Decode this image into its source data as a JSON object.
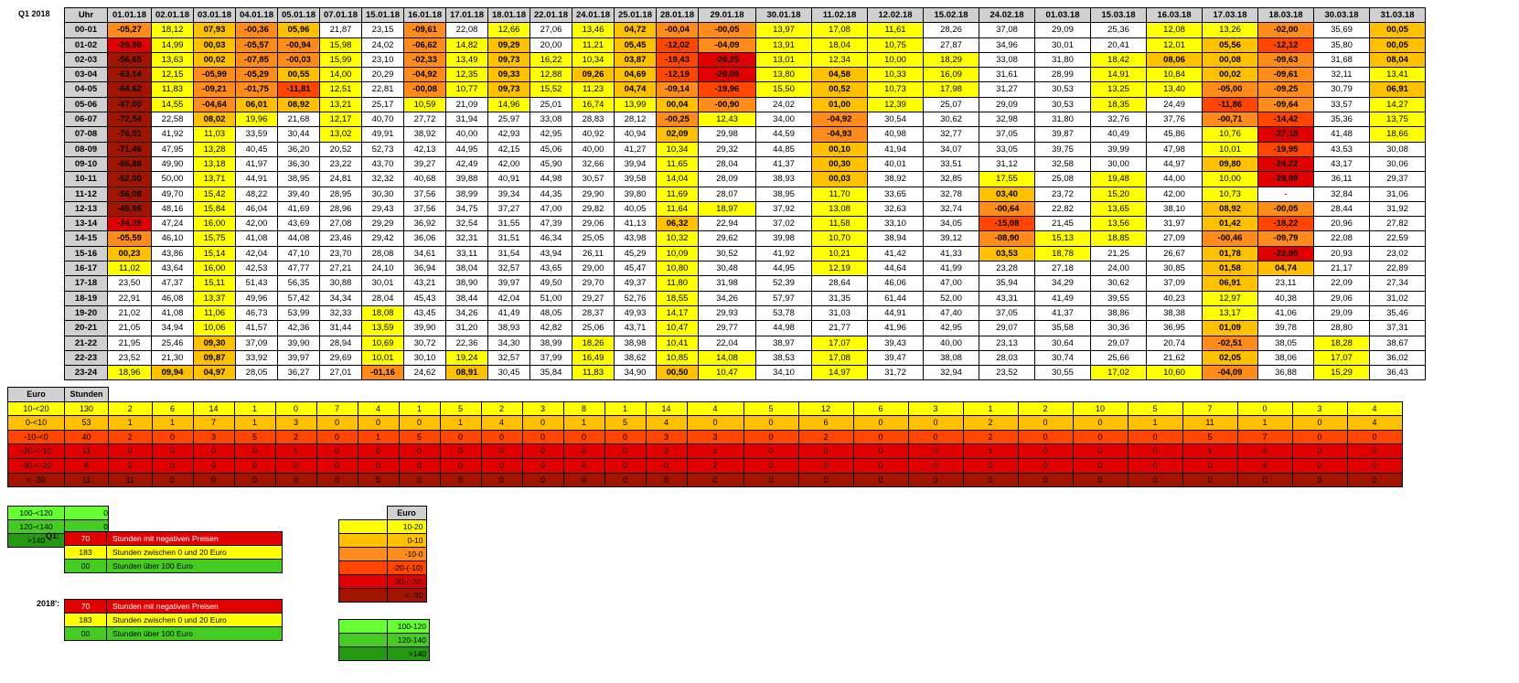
{
  "title": "Q1 2018",
  "main": {
    "hour_header": "Uhr",
    "dates": [
      "01.01.18",
      "02.01.18",
      "03.01.18",
      "04.01.18",
      "05.01.18",
      "07.01.18",
      "15.01.18",
      "16.01.18",
      "17.01.18",
      "18.01.18",
      "22.01.18",
      "24.01.18",
      "25.01.18",
      "28.01.18",
      "29.01.18",
      "30.01.18",
      "11.02.18",
      "12.02.18",
      "15.02.18",
      "24.02.18",
      "01.03.18",
      "15.03.18",
      "16.03.18",
      "17.03.18",
      "18.03.18",
      "30.03.18",
      "31.03.18"
    ],
    "rows": [
      {
        "hour": "00-01",
        "values": [
          "-05,27",
          "18,12",
          "07,93",
          "-00,36",
          "05,96",
          "21,87",
          "23,15",
          "-09,61",
          "22,08",
          "12,66",
          "27,06",
          "13,46",
          "04,72",
          "-00,04",
          "-00,05",
          "13,97",
          "17,08",
          "11,61",
          "28,26",
          "37,08",
          "29,09",
          "25,36",
          "12,08",
          "13,26",
          "-02,00",
          "35,69",
          "00,05"
        ]
      },
      {
        "hour": "01-02",
        "values": [
          "-29,99",
          "14,99",
          "00,03",
          "-05,57",
          "-00,94",
          "15,98",
          "24,02",
          "-06,62",
          "14,82",
          "09,29",
          "20,00",
          "11,21",
          "05,45",
          "-12,02",
          "-04,09",
          "13,91",
          "18,04",
          "10,75",
          "27,87",
          "34,96",
          "30,01",
          "20,41",
          "12,01",
          "05,56",
          "-12,12",
          "35,80",
          "00,05"
        ]
      },
      {
        "hour": "02-03",
        "values": [
          "-56,65",
          "13,63",
          "00,02",
          "-07,85",
          "-00,03",
          "15,99",
          "23,10",
          "-02,33",
          "13,49",
          "09,73",
          "16,22",
          "10,34",
          "03,87",
          "-19,43",
          "-20,25",
          "13,01",
          "12,34",
          "10,00",
          "18,29",
          "33,08",
          "31,80",
          "18,42",
          "08,06",
          "00,08",
          "-09,63",
          "31,68",
          "08,04"
        ]
      },
      {
        "hour": "03-04",
        "values": [
          "-63,14",
          "12,15",
          "-05,99",
          "-05,29",
          "00,55",
          "14,00",
          "20,29",
          "-04,92",
          "12,35",
          "09,33",
          "12,88",
          "09,26",
          "04,69",
          "-12,19",
          "-20,09",
          "13,80",
          "04,58",
          "10,33",
          "16,09",
          "31,61",
          "28,99",
          "14,91",
          "10,84",
          "00,02",
          "-09,61",
          "32,11",
          "13,41"
        ]
      },
      {
        "hour": "04-05",
        "values": [
          "-64,62",
          "11,83",
          "-09,21",
          "-01,75",
          "-11,81",
          "12,51",
          "22,81",
          "-00,08",
          "10,77",
          "09,73",
          "15,52",
          "11,23",
          "04,74",
          "-09,14",
          "-19,96",
          "15,50",
          "00,52",
          "10,73",
          "17,98",
          "31,27",
          "30,53",
          "13,25",
          "13,40",
          "-05,00",
          "-09,25",
          "30,79",
          "06,91"
        ]
      },
      {
        "hour": "05-06",
        "values": [
          "-67,00",
          "14,55",
          "-04,64",
          "06,01",
          "08,92",
          "13,21",
          "25,17",
          "10,59",
          "21,09",
          "14,96",
          "25,01",
          "16,74",
          "13,99",
          "00,04",
          "-00,90",
          "24,02",
          "01,00",
          "12,39",
          "25,07",
          "29,09",
          "30,53",
          "18,35",
          "24,49",
          "-11,86",
          "-09,64",
          "33,57",
          "14,27"
        ]
      },
      {
        "hour": "06-07",
        "values": [
          "-72,54",
          "22,58",
          "08,02",
          "19,96",
          "21,68",
          "12,17",
          "40,70",
          "27,72",
          "31,94",
          "25,97",
          "33,08",
          "28,83",
          "28,12",
          "-00,25",
          "12,43",
          "34,00",
          "-04,92",
          "30,54",
          "30,62",
          "32,98",
          "31,80",
          "32,76",
          "37,76",
          "-00,71",
          "-14,42",
          "35,36",
          "13,75"
        ]
      },
      {
        "hour": "07-08",
        "values": [
          "-76,01",
          "41,92",
          "11,03",
          "33,59",
          "30,44",
          "13,02",
          "49,91",
          "38,92",
          "40,00",
          "42,93",
          "42,95",
          "40,92",
          "40,94",
          "02,09",
          "29,98",
          "44,59",
          "-04,93",
          "40,98",
          "32,77",
          "37,05",
          "39,87",
          "40,49",
          "45,86",
          "10,76",
          "-27,18",
          "41,48",
          "18,66"
        ]
      },
      {
        "hour": "08-09",
        "values": [
          "-71,46",
          "47,95",
          "13,28",
          "40,45",
          "36,20",
          "20,52",
          "52,73",
          "42,13",
          "44,95",
          "42,15",
          "45,06",
          "40,00",
          "41,27",
          "10,34",
          "29,32",
          "44,85",
          "00,10",
          "41,94",
          "34,07",
          "33,05",
          "39,75",
          "39,99",
          "47,98",
          "10,01",
          "-19,95",
          "43,53",
          "30,08"
        ]
      },
      {
        "hour": "09-10",
        "values": [
          "-66,88",
          "49,90",
          "13,18",
          "41,97",
          "36,30",
          "23,22",
          "43,70",
          "39,27",
          "42,49",
          "42,00",
          "45,90",
          "32,66",
          "39,94",
          "11,65",
          "28,04",
          "41,37",
          "00,30",
          "40,01",
          "33,51",
          "31,12",
          "32,58",
          "30,00",
          "44,97",
          "09,80",
          "-24,22",
          "43,17",
          "30,06"
        ]
      },
      {
        "hour": "10-11",
        "values": [
          "-62,00",
          "50,00",
          "13,71",
          "44,91",
          "38,95",
          "24,81",
          "32,32",
          "40,68",
          "39,88",
          "40,91",
          "44,98",
          "30,57",
          "39,58",
          "14,04",
          "28,09",
          "38,93",
          "00,03",
          "38,92",
          "32,85",
          "17,55",
          "25,08",
          "19,48",
          "44,00",
          "10,00",
          "-29,99",
          "36,11",
          "29,37"
        ]
      },
      {
        "hour": "11-12",
        "values": [
          "-56,08",
          "49,70",
          "15,42",
          "48,22",
          "39,40",
          "28,95",
          "30,30",
          "37,56",
          "38,99",
          "39,34",
          "44,35",
          "29,90",
          "39,80",
          "11,69",
          "28,07",
          "38,95",
          "11,70",
          "33,65",
          "32,78",
          "03,40",
          "23,72",
          "15,20",
          "42,00",
          "10,73",
          "-",
          "32,84",
          "31,06"
        ]
      },
      {
        "hour": "12-13",
        "values": [
          "-49,96",
          "48,16",
          "15,84",
          "46,04",
          "41,69",
          "28,96",
          "29,43",
          "37,56",
          "34,75",
          "37,27",
          "47,00",
          "29,82",
          "40,05",
          "11,64",
          "18,97",
          "37,92",
          "13,08",
          "32,63",
          "32,74",
          "-00,64",
          "22,82",
          "13,65",
          "38,10",
          "08,92",
          "-00,05",
          "28,44",
          "31,92"
        ]
      },
      {
        "hour": "13-14",
        "values": [
          "-24,29",
          "47,24",
          "16,00",
          "42,00",
          "43,69",
          "27,08",
          "29,29",
          "36,92",
          "32,54",
          "31,55",
          "47,39",
          "29,06",
          "41,13",
          "06,32",
          "22,94",
          "37,02",
          "11,58",
          "33,10",
          "34,05",
          "-15,08",
          "21,45",
          "13,56",
          "31,97",
          "01,42",
          "-18,22",
          "20,96",
          "27,82"
        ]
      },
      {
        "hour": "14-15",
        "values": [
          "-05,59",
          "46,10",
          "15,75",
          "41,08",
          "44,08",
          "23,46",
          "29,42",
          "36,06",
          "32,31",
          "31,51",
          "46,34",
          "25,05",
          "43,98",
          "10,32",
          "29,62",
          "39,98",
          "10,70",
          "38,94",
          "39,12",
          "-08,90",
          "15,13",
          "18,85",
          "27,09",
          "-00,46",
          "-09,79",
          "22,08",
          "22,59"
        ]
      },
      {
        "hour": "15-16",
        "values": [
          "00,23",
          "43,86",
          "15,14",
          "42,04",
          "47,10",
          "23,70",
          "28,08",
          "34,61",
          "33,11",
          "31,54",
          "43,94",
          "26,11",
          "45,29",
          "10,09",
          "30,52",
          "41,92",
          "10,21",
          "41,42",
          "41,33",
          "03,53",
          "18,78",
          "21,25",
          "26,67",
          "01,78",
          "-22,95",
          "20,93",
          "23,02"
        ]
      },
      {
        "hour": "16-17",
        "values": [
          "11,02",
          "43,64",
          "16,00",
          "42,53",
          "47,77",
          "27,21",
          "24,10",
          "36,94",
          "38,04",
          "32,57",
          "43,65",
          "29,00",
          "45,47",
          "10,80",
          "30,48",
          "44,95",
          "12,19",
          "44,64",
          "41,99",
          "23,28",
          "27,18",
          "24,00",
          "30,85",
          "01,58",
          "04,74",
          "21,17",
          "22,89"
        ]
      },
      {
        "hour": "17-18",
        "values": [
          "23,50",
          "47,37",
          "15,11",
          "51,43",
          "56,35",
          "30,88",
          "30,01",
          "43,21",
          "38,90",
          "39,97",
          "49,50",
          "29,70",
          "49,37",
          "11,80",
          "31,98",
          "52,39",
          "28,64",
          "46,06",
          "47,00",
          "35,94",
          "34,29",
          "30,62",
          "37,09",
          "06,91",
          "23,11",
          "22,09",
          "27,34"
        ]
      },
      {
        "hour": "18-19",
        "values": [
          "22,91",
          "46,08",
          "13,37",
          "49,96",
          "57,42",
          "34,34",
          "28,04",
          "45,43",
          "38,44",
          "42,04",
          "51,00",
          "29,27",
          "52,76",
          "18,55",
          "34,26",
          "57,97",
          "31,35",
          "61,44",
          "52,00",
          "43,31",
          "41,49",
          "39,55",
          "40,23",
          "12,97",
          "40,38",
          "29,06",
          "31,02"
        ]
      },
      {
        "hour": "19-20",
        "values": [
          "21,02",
          "41,08",
          "11,06",
          "46,73",
          "53,99",
          "32,33",
          "18,08",
          "43,45",
          "34,26",
          "41,49",
          "48,05",
          "28,37",
          "49,93",
          "14,17",
          "29,93",
          "53,78",
          "31,03",
          "44,91",
          "47,40",
          "37,05",
          "41,37",
          "38,86",
          "38,38",
          "13,17",
          "41,06",
          "29,09",
          "35,46"
        ]
      },
      {
        "hour": "20-21",
        "values": [
          "21,05",
          "34,94",
          "10,06",
          "41,57",
          "42,36",
          "31,44",
          "13,59",
          "39,90",
          "31,20",
          "38,93",
          "42,82",
          "25,06",
          "43,71",
          "10,47",
          "29,77",
          "44,98",
          "21,77",
          "41,96",
          "42,95",
          "29,07",
          "35,58",
          "30,36",
          "36,95",
          "01,09",
          "39,78",
          "28,80",
          "37,31"
        ]
      },
      {
        "hour": "21-22",
        "values": [
          "21,95",
          "25,46",
          "09,30",
          "37,09",
          "39,90",
          "28,94",
          "10,69",
          "30,72",
          "22,36",
          "34,30",
          "38,99",
          "18,26",
          "38,98",
          "10,41",
          "22,04",
          "38,97",
          "17,07",
          "39,43",
          "40,00",
          "23,13",
          "30,64",
          "29,07",
          "20,74",
          "-02,51",
          "38,05",
          "18,28",
          "38,67"
        ]
      },
      {
        "hour": "22-23",
        "values": [
          "23,52",
          "21,30",
          "09,87",
          "33,92",
          "39,97",
          "29,69",
          "10,01",
          "30,10",
          "19,24",
          "32,57",
          "37,99",
          "16,49",
          "38,62",
          "10,85",
          "14,08",
          "38,53",
          "17,08",
          "39,47",
          "38,08",
          "28,03",
          "30,74",
          "25,66",
          "21,62",
          "02,05",
          "38,06",
          "17,07",
          "36,02"
        ]
      },
      {
        "hour": "23-24",
        "values": [
          "18,96",
          "09,94",
          "04,97",
          "28,05",
          "36,27",
          "27,01",
          "-01,16",
          "24,62",
          "08,91",
          "30,45",
          "35,84",
          "11,83",
          "34,90",
          "00,50",
          "10,47",
          "34,10",
          "14,97",
          "31,72",
          "32,94",
          "23,52",
          "30,55",
          "17,02",
          "10,60",
          "-04,09",
          "36,88",
          "15,29",
          "36,43"
        ]
      }
    ]
  },
  "counts": {
    "header_euro": "Euro",
    "header_hours": "Stunden",
    "rows": [
      {
        "label": "10-<20",
        "total": "130",
        "values": [
          "2",
          "6",
          "14",
          "1",
          "0",
          "7",
          "4",
          "1",
          "5",
          "2",
          "3",
          "8",
          "1",
          "14",
          "4",
          "5",
          "12",
          "6",
          "3",
          "1",
          "2",
          "10",
          "5",
          "7",
          "0",
          "3",
          "4"
        ]
      },
      {
        "label": "0-<10",
        "total": "53",
        "values": [
          "1",
          "1",
          "7",
          "1",
          "3",
          "0",
          "0",
          "0",
          "1",
          "4",
          "0",
          "1",
          "5",
          "4",
          "0",
          "0",
          "6",
          "0",
          "0",
          "2",
          "0",
          "0",
          "1",
          "11",
          "1",
          "0",
          "4"
        ]
      },
      {
        "label": "-10-<0",
        "total": "40",
        "values": [
          "2",
          "0",
          "3",
          "5",
          "2",
          "0",
          "1",
          "5",
          "0",
          "0",
          "0",
          "0",
          "0",
          "3",
          "3",
          "0",
          "2",
          "0",
          "0",
          "2",
          "0",
          "0",
          "0",
          "5",
          "7",
          "0",
          "0"
        ]
      },
      {
        "label": "-20-<-10",
        "total": "11",
        "values": [
          "0",
          "0",
          "0",
          "0",
          "1",
          "0",
          "0",
          "0",
          "0",
          "0",
          "0",
          "0",
          "0",
          "3",
          "1",
          "0",
          "0",
          "0",
          "0",
          "1",
          "0",
          "0",
          "0",
          "1",
          "4",
          "0",
          "0"
        ]
      },
      {
        "label": "-30-<-20",
        "total": "8",
        "values": [
          "2",
          "0",
          "0",
          "0",
          "0",
          "0",
          "0",
          "0",
          "0",
          "0",
          "0",
          "0",
          "0",
          "0",
          "2",
          "0",
          "0",
          "0",
          "0",
          "0",
          "0",
          "0",
          "0",
          "0",
          "4",
          "0",
          "0"
        ]
      },
      {
        "label": "< -30",
        "total": "11",
        "values": [
          "11",
          "0",
          "0",
          "0",
          "0",
          "0",
          "0",
          "0",
          "0",
          "0",
          "0",
          "0",
          "0",
          "0",
          "0",
          "0",
          "0",
          "0",
          "0",
          "0",
          "0",
          "0",
          "0",
          "0",
          "0",
          "0",
          "0"
        ]
      }
    ]
  },
  "high": [
    {
      "label": "100-<120",
      "value": "0"
    },
    {
      "label": "120-<140",
      "value": "0"
    },
    {
      "label": ">140",
      "value": "0"
    }
  ],
  "q1_summary": {
    "label": "Q1:",
    "rows": [
      {
        "value": "70",
        "text": "Stunden mit negativen Preisen"
      },
      {
        "value": "183",
        "text": "Stunden zwischen 0 und 20 Euro"
      },
      {
        "value": "00",
        "text": "Stunden über 100 Euro"
      }
    ]
  },
  "year_summary": {
    "label": "2018':",
    "rows": [
      {
        "value": "70",
        "text": "Stunden mit negativen Preisen"
      },
      {
        "value": "183",
        "text": "Stunden zwischen 0 und 20 Euro"
      },
      {
        "value": "00",
        "text": "Stunden über 100 Euro"
      }
    ]
  },
  "legend": {
    "header": "Euro",
    "items": [
      "10-20",
      "0-10",
      "-10-0",
      "-20-(-10)",
      "-30-(-20)",
      "< -30"
    ],
    "high_items": [
      "100-120",
      "120-140",
      ">140"
    ]
  },
  "colors": {
    "yellow": "#ffff00",
    "orange_light": "#ffc000",
    "orange": "#ff8c1a",
    "red_orange": "#ff4500",
    "red": "#e00000",
    "dark_red": "#a01400",
    "green_light": "#66ff33",
    "green": "#44cc22",
    "green_dark": "#229911",
    "header_gray": "#d0d0d0"
  }
}
